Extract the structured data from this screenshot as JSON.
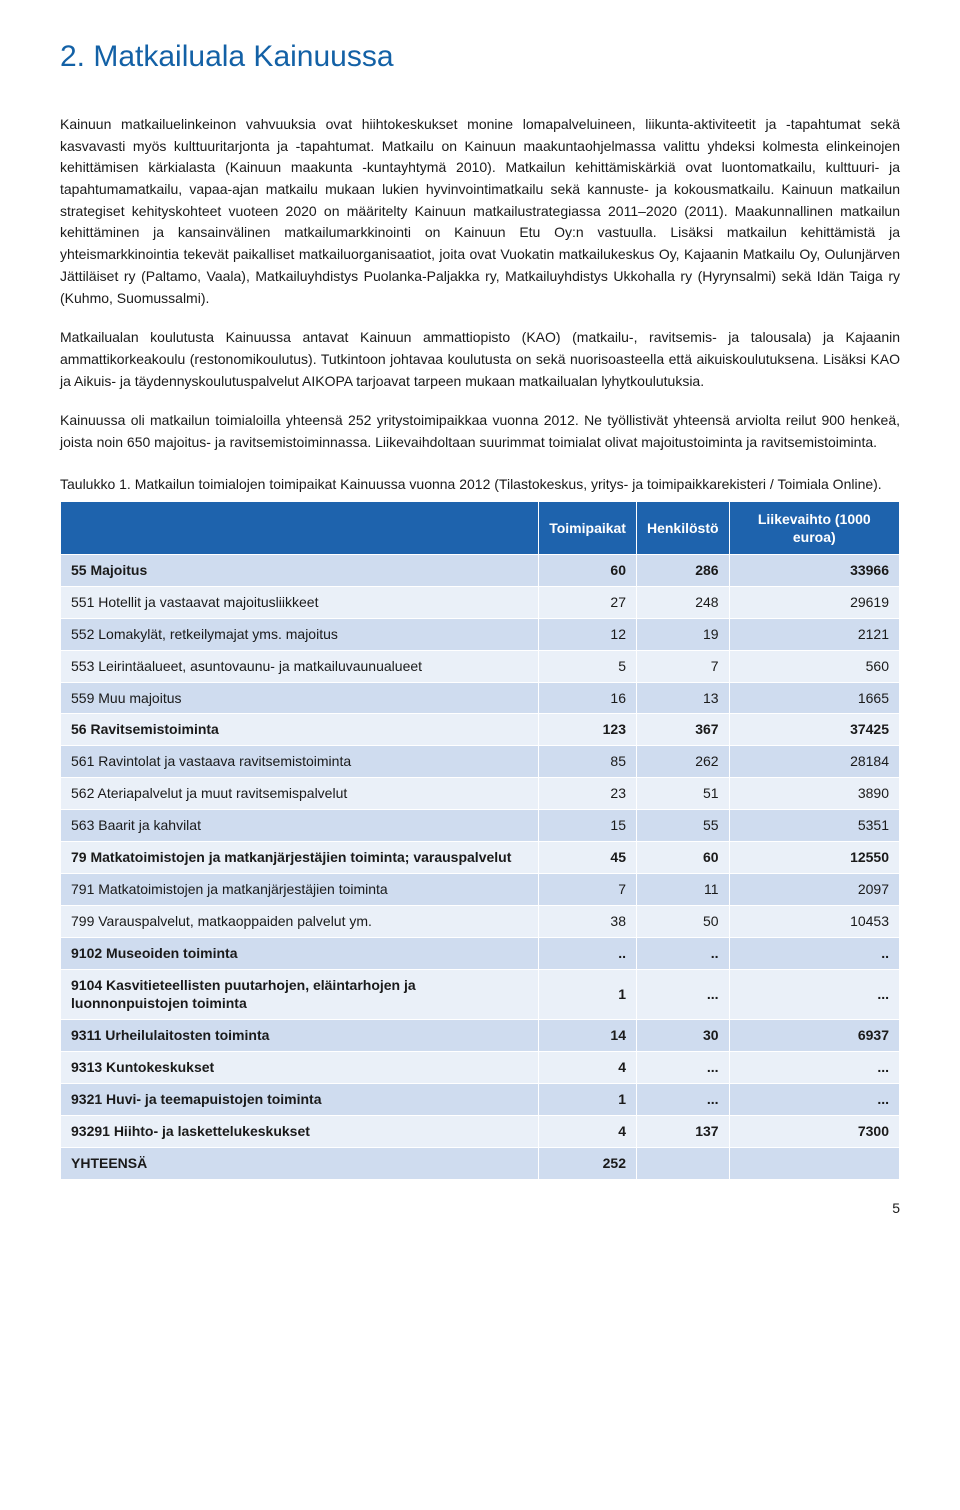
{
  "heading": "2. Matkailuala Kainuussa",
  "paragraphs": [
    "Kainuun matkailuelinkeinon vahvuuksia ovat hiihtokeskukset monine lomapalveluineen, liikunta-aktiviteetit ja -tapahtumat sekä kasvavasti myös kulttuuritarjonta ja -tapahtumat. Matkailu on Kainuun maakuntaohjelmassa valittu yhdeksi kolmesta elinkeinojen kehittämisen kärkialasta (Kainuun maakunta -kuntayhtymä 2010). Matkailun kehittämiskärkiä ovat luontomatkailu, kulttuuri- ja tapahtumamatkailu, vapaa-ajan matkailu mukaan lukien hyvinvointimatkailu sekä kannuste- ja kokousmatkailu. Kainuun matkailun strategiset kehityskohteet vuoteen 2020 on määritelty Kainuun matkailustrategiassa 2011–2020 (2011). Maakunnallinen matkailun kehittäminen ja kansainvälinen matkailumarkkinointi on Kainuun Etu Oy:n vastuulla. Lisäksi matkailun kehittämistä ja yhteismarkkinointia tekevät paikalliset matkailuorganisaatiot, joita ovat Vuokatin matkailukeskus Oy, Kajaanin Matkailu Oy, Oulunjärven Jättiläiset ry (Paltamo, Vaala), Matkailuyhdistys Puolanka-Paljakka ry, Matkailuyhdistys Ukkohalla ry (Hyrynsalmi) sekä Idän Taiga ry (Kuhmo, Suomussalmi).",
    "Matkailualan koulutusta Kainuussa antavat Kainuun ammattiopisto (KAO) (matkailu-, ravitsemis- ja talousala) ja Kajaanin ammattikorkeakoulu (restonomikoulutus). Tutkintoon johtavaa koulutusta on sekä nuorisoasteella että aikuiskoulutuksena. Lisäksi KAO ja Aikuis- ja täydennyskoulutuspalvelut AIKOPA tarjoavat tarpeen mukaan matkailualan lyhytkoulutuksia.",
    "Kainuussa oli matkailun toimialoilla yhteensä 252 yritystoimipaikkaa vuonna 2012. Ne työllistivät yhteensä arviolta reilut 900 henkeä, joista noin 650 majoitus- ja ravitsemistoiminnassa. Liikevaihdoltaan suurimmat toimialat olivat majoitustoiminta ja ravitsemistoiminta."
  ],
  "table_caption": "Taulukko 1. Matkailun toimialojen toimipaikat Kainuussa vuonna 2012 (Tilastokeskus, yritys- ja toimipaikkarekisteri / Toimiala Online).",
  "table": {
    "columns": [
      "",
      "Toimipaikat",
      "Henkilöstö",
      "Liikevaihto (1000 euroa)"
    ],
    "header_bg": "#1e63ad",
    "header_color": "#ffffff",
    "row_odd_bg": "#cfdcef",
    "row_even_bg": "#eaf0f8",
    "rows": [
      {
        "label": "55 Majoitus",
        "c1": "60",
        "c2": "286",
        "c3": "33966",
        "bold": true
      },
      {
        "label": "551 Hotellit ja vastaavat majoitusliikkeet",
        "c1": "27",
        "c2": "248",
        "c3": "29619",
        "bold": false
      },
      {
        "label": "552 Lomakylät, retkeilymajat yms. majoitus",
        "c1": "12",
        "c2": "19",
        "c3": "2121",
        "bold": false
      },
      {
        "label": "553 Leirintäalueet, asuntovaunu- ja matkailuvaunualueet",
        "c1": "5",
        "c2": "7",
        "c3": "560",
        "bold": false
      },
      {
        "label": "559 Muu majoitus",
        "c1": "16",
        "c2": "13",
        "c3": "1665",
        "bold": false
      },
      {
        "label": "56 Ravitsemistoiminta",
        "c1": "123",
        "c2": "367",
        "c3": "37425",
        "bold": true
      },
      {
        "label": "561 Ravintolat ja vastaava ravitsemistoiminta",
        "c1": "85",
        "c2": "262",
        "c3": "28184",
        "bold": false
      },
      {
        "label": "562 Ateriapalvelut ja muut ravitsemispalvelut",
        "c1": "23",
        "c2": "51",
        "c3": "3890",
        "bold": false
      },
      {
        "label": "563 Baarit ja kahvilat",
        "c1": "15",
        "c2": "55",
        "c3": "5351",
        "bold": false
      },
      {
        "label": "79 Matkatoimistojen ja matkanjärjestäjien toiminta; varauspalvelut",
        "c1": "45",
        "c2": "60",
        "c3": "12550",
        "bold": true
      },
      {
        "label": "791 Matkatoimistojen ja matkanjärjestäjien toiminta",
        "c1": "7",
        "c2": "11",
        "c3": "2097",
        "bold": false
      },
      {
        "label": "799 Varauspalvelut, matkaoppaiden palvelut ym.",
        "c1": "38",
        "c2": "50",
        "c3": "10453",
        "bold": false
      },
      {
        "label": "9102 Museoiden toiminta",
        "c1": "..",
        "c2": "..",
        "c3": "..",
        "bold": true
      },
      {
        "label": "9104 Kasvitieteellisten puutarhojen, eläintarhojen ja luonnonpuistojen toiminta",
        "c1": "1",
        "c2": "...",
        "c3": "...",
        "bold": true
      },
      {
        "label": "9311 Urheilulaitosten toiminta",
        "c1": "14",
        "c2": "30",
        "c3": "6937",
        "bold": true
      },
      {
        "label": "9313 Kuntokeskukset",
        "c1": "4",
        "c2": "...",
        "c3": "...",
        "bold": true
      },
      {
        "label": "9321 Huvi- ja teemapuistojen toiminta",
        "c1": "1",
        "c2": "...",
        "c3": "...",
        "bold": true
      },
      {
        "label": "93291 Hiihto- ja laskettelukeskukset",
        "c1": "4",
        "c2": "137",
        "c3": "7300",
        "bold": true
      },
      {
        "label": "YHTEENSÄ",
        "c1": "252",
        "c2": "",
        "c3": "",
        "bold": true
      }
    ]
  },
  "page_number": "5"
}
